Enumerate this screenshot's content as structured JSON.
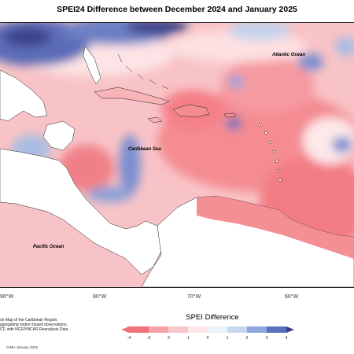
{
  "title": "SPEI24 Difference between December 2024 and January 2025",
  "map": {
    "labels": {
      "atlantic": "Atlantic Ocean",
      "caribbean": "Caribbean Sea",
      "pacific": "Pacific Ocean"
    },
    "longitudes": [
      "90°W",
      "80°W",
      "70°W",
      "60°W"
    ]
  },
  "credit": {
    "line1": "on Map of the Caribbean Region.",
    "line2": "ggregating station based observations,",
    "line3": "CF, with NCEP/NCAR Reanalysis Data."
  },
  "colorbar": {
    "title": "SPEI Difference",
    "ticks": [
      "-4",
      "-3",
      "-2",
      "-1",
      "0",
      "1",
      "2",
      "3",
      "4"
    ],
    "colors": [
      "#f2727a",
      "#f6a2a6",
      "#f9c8cb",
      "#fde7e8",
      "#eaf3f7",
      "#c6d8ee",
      "#8ea6dd",
      "#5a6fbe",
      "#3a3f86"
    ]
  },
  "footer": "CIMH January 2025"
}
